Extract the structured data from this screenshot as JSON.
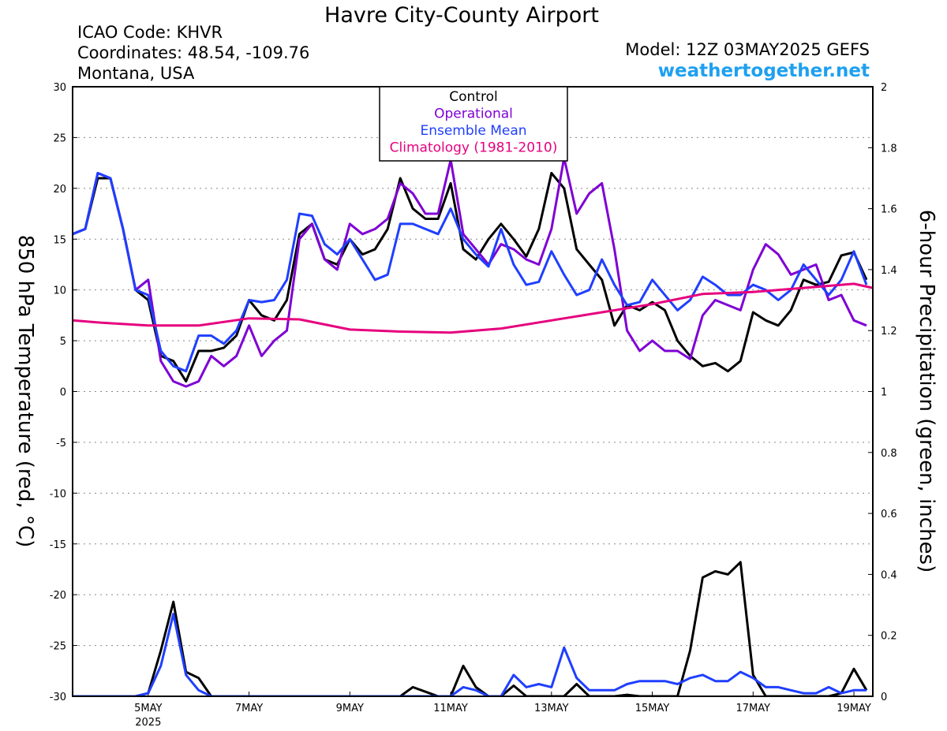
{
  "chart_data": {
    "type": "line",
    "title": "Havre City-County Airport",
    "info_left": [
      "ICAO Code: KHVR",
      "Coordinates: 48.54, -109.76",
      "Montana, USA"
    ],
    "model": "Model: 12Z 03MAY2025 GEFS",
    "site": "weathertogether.net",
    "y_label": "850 hPa Temperature (red, °C)",
    "y2_label": "6-hour Precipitation (green, inches)",
    "x_year_label": "2025",
    "xlim": [
      3.5,
      19.375
    ],
    "xticks": [
      {
        "value": 5,
        "label": "5MAY"
      },
      {
        "value": 7,
        "label": "7MAY"
      },
      {
        "value": 9,
        "label": "9MAY"
      },
      {
        "value": 11,
        "label": "11MAY"
      },
      {
        "value": 13,
        "label": "13MAY"
      },
      {
        "value": 15,
        "label": "15MAY"
      },
      {
        "value": 17,
        "label": "17MAY"
      },
      {
        "value": 19,
        "label": "19MAY"
      }
    ],
    "ylim": [
      -30,
      30
    ],
    "yticks": [
      -30,
      -25,
      -20,
      -15,
      -10,
      -5,
      0,
      5,
      10,
      15,
      20,
      25,
      30
    ],
    "y2lim": [
      0,
      2
    ],
    "y2ticks": [
      0,
      0.2,
      0.4,
      0.6,
      0.8,
      1,
      1.2,
      1.4,
      1.6,
      1.8,
      2
    ],
    "grid": true,
    "x": [
      3.5,
      3.75,
      4,
      4.25,
      4.5,
      4.75,
      5,
      5.25,
      5.5,
      5.75,
      6,
      6.25,
      6.5,
      6.75,
      7,
      7.25,
      7.5,
      7.75,
      8,
      8.25,
      8.5,
      8.75,
      9,
      9.25,
      9.5,
      9.75,
      10,
      10.25,
      10.5,
      10.75,
      11,
      11.25,
      11.5,
      11.75,
      12,
      12.25,
      12.5,
      12.75,
      13,
      13.25,
      13.5,
      13.75,
      14,
      14.25,
      14.5,
      14.75,
      15,
      15.25,
      15.5,
      15.75,
      16,
      16.25,
      16.5,
      16.75,
      17,
      17.25,
      17.5,
      17.75,
      18,
      18.25,
      18.5,
      18.75,
      19,
      19.25
    ],
    "series": [
      {
        "name": "Control",
        "color": "#000000",
        "width": 3,
        "values": [
          15.5,
          16,
          21,
          21,
          16,
          10,
          9,
          3.5,
          3,
          1,
          4,
          4,
          4.3,
          5.5,
          9,
          7.5,
          7,
          9,
          15.5,
          16.5,
          13,
          12.5,
          15,
          13.5,
          14,
          16,
          21,
          18,
          17,
          17,
          20.5,
          14,
          13,
          15,
          16.5,
          15,
          13.3,
          16,
          21.5,
          20,
          14,
          12.5,
          11,
          6.5,
          8.5,
          8,
          8.8,
          8,
          5,
          3.5,
          2.5,
          2.8,
          2,
          3,
          7.8,
          7,
          6.5,
          8,
          11,
          10.5,
          10.8,
          13.4,
          13.7,
          11
        ]
      },
      {
        "name": "Operational",
        "color": "#7f00d4",
        "width": 3,
        "values": [
          15.5,
          16,
          21.5,
          21,
          16,
          10,
          11,
          3,
          1,
          0.5,
          1,
          3.5,
          2.5,
          3.5,
          6.5,
          3.5,
          5,
          6,
          15,
          16.5,
          13,
          12,
          16.5,
          15.5,
          16,
          17,
          20.5,
          19.5,
          17.5,
          17.5,
          22.8,
          15.5,
          14,
          12.5,
          14.5,
          14,
          13,
          12.5,
          16,
          23,
          17.5,
          19.5,
          20.5,
          14,
          6,
          4,
          5,
          4,
          4,
          3.2,
          7.5,
          9,
          8.5,
          8,
          12,
          14.5,
          13.5,
          11.5,
          12,
          12.5,
          9,
          9.5,
          7,
          6.5
        ]
      },
      {
        "name": "Ensemble Mean",
        "color": "#1f3fff",
        "width": 3,
        "values": [
          15.5,
          16,
          21.5,
          21,
          16,
          10,
          9.5,
          4,
          2.5,
          2,
          5.5,
          5.5,
          4.7,
          6,
          9,
          8.8,
          9,
          11,
          17.5,
          17.3,
          14.5,
          13.5,
          15,
          13,
          11,
          11.5,
          16.5,
          16.5,
          16,
          15.5,
          18,
          15,
          13.5,
          12.3,
          16,
          12.5,
          10.5,
          10.8,
          13.8,
          11.5,
          9.5,
          10,
          13,
          10.5,
          8.5,
          8.8,
          11,
          9.5,
          8,
          9,
          11.3,
          10.5,
          9.5,
          9.5,
          10.5,
          10,
          9,
          10,
          12.5,
          11,
          9.5,
          11,
          13.8,
          10.5
        ]
      },
      {
        "name": "Climatology (1981-2010)",
        "color": "#e6007e",
        "width": 3,
        "x": [
          3.5,
          4,
          5,
          6,
          7,
          8,
          9,
          10,
          11,
          12,
          13,
          14,
          15,
          16,
          17,
          18,
          19,
          19.375
        ],
        "values": [
          7,
          6.8,
          6.5,
          6.5,
          7.2,
          7.1,
          6.1,
          5.9,
          5.8,
          6.2,
          7,
          7.8,
          8.6,
          9.6,
          9.8,
          10.2,
          10.6,
          10.2
        ]
      },
      {
        "color": "#000000",
        "width": 3,
        "axis": "y2",
        "values": [
          0,
          0,
          0,
          0,
          0,
          0,
          0.01,
          0.15,
          0.31,
          0.08,
          0.06,
          0,
          0,
          0,
          0,
          0,
          0,
          0,
          0,
          0,
          0,
          0,
          0,
          0,
          0,
          0,
          0,
          0.03,
          0.015,
          0,
          0,
          0.1,
          0.03,
          0,
          0,
          0.035,
          0,
          0,
          0,
          0,
          0.04,
          0,
          0,
          0,
          0.005,
          0,
          0,
          0,
          0,
          0.15,
          0.39,
          0.41,
          0.4,
          0.44,
          0.07,
          0,
          0,
          0,
          0,
          0,
          0,
          0.01,
          0.09,
          0.02
        ]
      },
      {
        "color": "#1f3fff",
        "width": 3,
        "axis": "y2",
        "values": [
          0,
          0,
          0,
          0,
          0,
          0,
          0.01,
          0.1,
          0.27,
          0.07,
          0.02,
          0,
          0,
          0,
          0,
          0,
          0,
          0,
          0,
          0,
          0,
          0,
          0,
          0,
          0,
          0,
          0,
          0,
          0,
          0,
          0,
          0.03,
          0.02,
          0,
          0,
          0.07,
          0.03,
          0.04,
          0.03,
          0.16,
          0.06,
          0.02,
          0.02,
          0.02,
          0.04,
          0.05,
          0.05,
          0.05,
          0.04,
          0.06,
          0.07,
          0.05,
          0.05,
          0.08,
          0.06,
          0.03,
          0.03,
          0.02,
          0.01,
          0.01,
          0.03,
          0.01,
          0.02,
          0.02
        ]
      }
    ]
  }
}
